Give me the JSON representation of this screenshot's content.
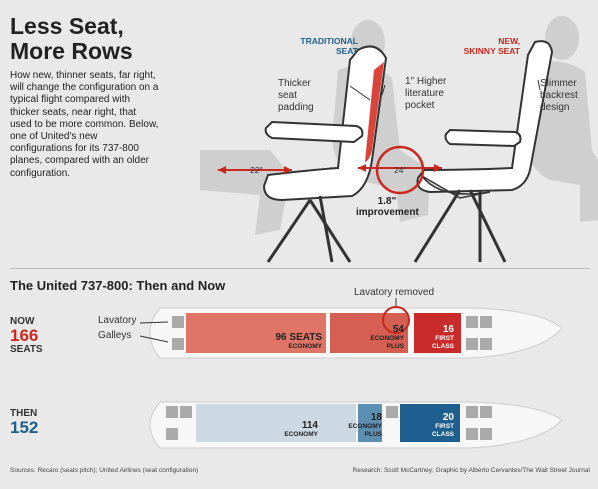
{
  "title_line1": "Less Seat,",
  "title_line2": "More Rows",
  "intro": "How new, thinner seats, far right, will change the configuration on a typical flight compared with thicker seats, near right, that used to be more common. Below, one of United's new configurations for its 737-800 planes, compared with an older configuration.",
  "seat_traditional": {
    "line1": "TRADITIONAL",
    "line2": "SEAT"
  },
  "seat_skinny": {
    "line1": "NEW,",
    "line2": "SKINNY SEAT"
  },
  "callouts": {
    "padding": [
      "Thicker",
      "seat",
      "padding"
    ],
    "pocket": [
      "1\" Higher",
      "literature",
      "pocket"
    ],
    "backrest": [
      "Slimmer",
      "backrest",
      "design"
    ]
  },
  "pitch_old": "22\"",
  "pitch_new": "24\"",
  "improvement_value": "1.8\"",
  "improvement_label": "improvement",
  "section_title": "The United 737-800: Then and Now",
  "lavatory_removed": "Lavatory removed",
  "legend_lavatory": "Lavatory",
  "legend_galleys": "Galleys",
  "now": {
    "label": "NOW",
    "count": "166",
    "unit": "SEATS"
  },
  "then": {
    "label": "THEN",
    "count": "152"
  },
  "now_sections": [
    {
      "seats": "96 SEATS",
      "class": "ECONOMY"
    },
    {
      "seats": "54",
      "class1": "ECONOMY",
      "class2": "PLUS"
    },
    {
      "seats": "16",
      "class1": "FIRST",
      "class2": "CLASS"
    }
  ],
  "then_sections": [
    {
      "seats": "114",
      "class": "ECONOMY"
    },
    {
      "seats": "18",
      "class1": "ECONOMY",
      "class2": "PLUS"
    },
    {
      "seats": "20",
      "class1": "FIRST",
      "class2": "CLASS"
    }
  ],
  "colors": {
    "now_economy": "#e07466",
    "now_plus": "#d45f52",
    "now_first": "#c92a2a",
    "then_economy": "#cdd9e2",
    "then_plus": "#5d8fb3",
    "then_first": "#1f5f8f",
    "accent_red": "#c8281e",
    "accent_blue": "#1f5f8f"
  },
  "footer_left": "Sources: Recaro (seats pitch); United Airlines (seat configuration)",
  "footer_right": "Research: Scott McCartney; Graphic by Alberto Cervantes/The Wall Street Journal"
}
